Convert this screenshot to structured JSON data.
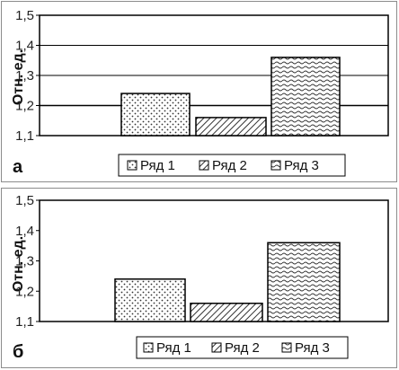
{
  "chart_data": [
    {
      "type": "bar",
      "panel_label": "а",
      "ylabel": "Отн. ед.",
      "categories": [
        ""
      ],
      "ylim": [
        1.1,
        1.5
      ],
      "yticks": [
        "1,1",
        "1,2",
        "1,3",
        "1,4",
        "1,5"
      ],
      "grid": true,
      "legend": "bottom",
      "reference_line": 1.2,
      "series": [
        {
          "name": "Ряд 1",
          "values": [
            1.24
          ],
          "pattern": "dots"
        },
        {
          "name": "Ряд 2",
          "values": [
            1.16
          ],
          "pattern": "diagonal"
        },
        {
          "name": "Ряд 3",
          "values": [
            1.36
          ],
          "pattern": "waves"
        }
      ]
    },
    {
      "type": "bar",
      "panel_label": "б",
      "ylabel": "Отн. ед.",
      "categories": [
        ""
      ],
      "ylim": [
        1.1,
        1.5
      ],
      "yticks": [
        "1,1",
        "1,2",
        "1,3",
        "1,4",
        "1,5"
      ],
      "grid": false,
      "legend": "bottom",
      "series": [
        {
          "name": "Ряд 1",
          "values": [
            1.24
          ],
          "pattern": "dots"
        },
        {
          "name": "Ряд 2",
          "values": [
            1.16
          ],
          "pattern": "diagonal"
        },
        {
          "name": "Ряд 3",
          "values": [
            1.36
          ],
          "pattern": "waves"
        }
      ]
    }
  ]
}
